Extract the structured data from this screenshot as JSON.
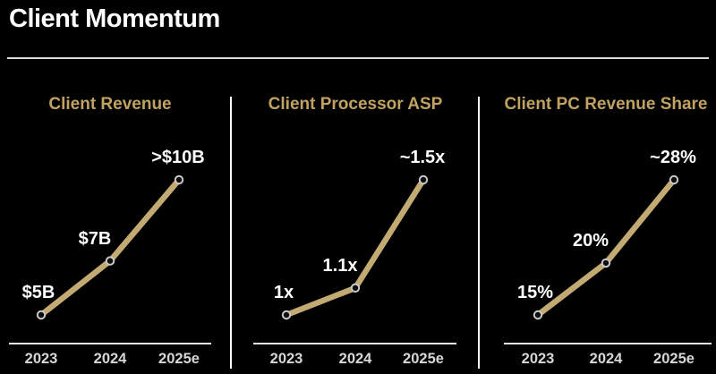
{
  "header": {
    "title": "Client Momentum"
  },
  "colors": {
    "background": "#000000",
    "gold_line": "#C3AA72",
    "gold_title": "#C1A262",
    "white_label": "#FFFFFF",
    "year_label_gray": "#D6D6D6",
    "axis_line_gray": "#E9E9E9",
    "divider_white": "#FAFAFA",
    "marker_fill": "#0D0D0D",
    "marker_ring": "#C9C9C9"
  },
  "chart_data": [
    {
      "type": "line",
      "title": "Client Revenue",
      "categories": [
        "2023",
        "2024",
        "2025e"
      ],
      "values": [
        5,
        7,
        10
      ],
      "point_labels": [
        "$5B",
        "$7B",
        ">$10B"
      ],
      "legend": "none",
      "grid": "off"
    },
    {
      "type": "line",
      "title": "Client Processor ASP",
      "categories": [
        "2023",
        "2024",
        "2025e"
      ],
      "values": [
        1,
        1.1,
        1.5
      ],
      "point_labels": [
        "1x",
        "1.1x",
        "~1.5x"
      ],
      "legend": "none",
      "grid": "off"
    },
    {
      "type": "line",
      "title": "Client PC Revenue Share",
      "categories": [
        "2023",
        "2024",
        "2025e"
      ],
      "values": [
        15,
        20,
        28
      ],
      "point_labels": [
        "15%",
        "20%",
        "~28%"
      ],
      "legend": "none",
      "grid": "off"
    }
  ]
}
